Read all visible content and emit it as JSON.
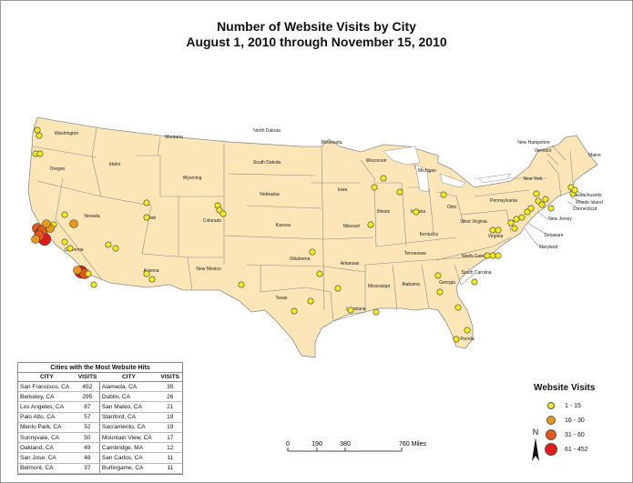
{
  "title": {
    "line1": "Number of Website Visits by City",
    "line2": "August 1, 2010 through November 15, 2010"
  },
  "states": [
    {
      "name": "Washington"
    },
    {
      "name": "Oregon"
    },
    {
      "name": "California"
    },
    {
      "name": "Nevada"
    },
    {
      "name": "Idaho"
    },
    {
      "name": "Montana"
    },
    {
      "name": "Wyoming"
    },
    {
      "name": "Utah"
    },
    {
      "name": "Arizona"
    },
    {
      "name": "Colorado"
    },
    {
      "name": "New Mexico"
    },
    {
      "name": "North Dakota"
    },
    {
      "name": "South Dakota"
    },
    {
      "name": "Nebraska"
    },
    {
      "name": "Kansas"
    },
    {
      "name": "Oklahoma"
    },
    {
      "name": "Texas"
    },
    {
      "name": "Minnesota"
    },
    {
      "name": "Iowa"
    },
    {
      "name": "Missouri"
    },
    {
      "name": "Arkansas"
    },
    {
      "name": "Louisiana"
    },
    {
      "name": "Wisconsin"
    },
    {
      "name": "Illinois"
    },
    {
      "name": "Michigan"
    },
    {
      "name": "Indiana"
    },
    {
      "name": "Ohio"
    },
    {
      "name": "Kentucky"
    },
    {
      "name": "Tennessee"
    },
    {
      "name": "Mississippi"
    },
    {
      "name": "Alabama"
    },
    {
      "name": "Georgia"
    },
    {
      "name": "Florida"
    },
    {
      "name": "South Carolina"
    },
    {
      "name": "North Carolina"
    },
    {
      "name": "Virginia"
    },
    {
      "name": "West Virginia"
    },
    {
      "name": "Pennsylvania"
    },
    {
      "name": "New York"
    },
    {
      "name": "Maine"
    },
    {
      "name": "Vermont"
    },
    {
      "name": "New Hampshire"
    },
    {
      "name": "Massachusetts"
    },
    {
      "name": "Rhode Island"
    },
    {
      "name": "Connecticut"
    },
    {
      "name": "New Jersey"
    },
    {
      "name": "Delaware"
    },
    {
      "name": "Maryland"
    }
  ],
  "top_cities": {
    "heading": "Cities with the Most Website Hits",
    "col_city": "CITY",
    "col_visits": "VISITS",
    "rows": [
      {
        "city1": "San Francisco, CA",
        "visits1": "452",
        "city2": "Alameda, CA",
        "visits2": "35"
      },
      {
        "city1": "Berkeley, CA",
        "visits1": "295",
        "city2": "Dublin, CA",
        "visits2": "26"
      },
      {
        "city1": "Los Angeles, CA",
        "visits1": "87",
        "city2": "San Mateo, CA",
        "visits2": "21"
      },
      {
        "city1": "Palo Alto, CA",
        "visits1": "57",
        "city2": "Stanford, CA",
        "visits2": "19"
      },
      {
        "city1": "Menlo Park, CA",
        "visits1": "52",
        "city2": "Sacramento, CA",
        "visits2": "19"
      },
      {
        "city1": "Sunnyvale, CA",
        "visits1": "50",
        "city2": "Mountain View, CA",
        "visits2": "17"
      },
      {
        "city1": "Oakland, CA",
        "visits1": "49",
        "city2": "Cambridge, MA",
        "visits2": "12"
      },
      {
        "city1": "San Jose, CA",
        "visits1": "48",
        "city2": "San Carlos, CA",
        "visits2": "11"
      },
      {
        "city1": "Belmont, CA",
        "visits1": "37",
        "city2": "Burlingame, CA",
        "visits2": "11"
      }
    ]
  },
  "legend": {
    "title": "Website Visits",
    "classes": [
      {
        "label": "1 - 15",
        "color": "#f3ea1b"
      },
      {
        "label": "16 - 30",
        "color": "#e89a16"
      },
      {
        "label": "31 - 60",
        "color": "#e4571a"
      },
      {
        "label": "61 - 452",
        "color": "#e41a1a"
      }
    ]
  },
  "scalebar": {
    "ticks": [
      "0",
      "190",
      "380",
      "760 Miles"
    ]
  },
  "north_label": "N",
  "colors": {
    "land": "#fce6b8",
    "border": "#8c8c8c"
  }
}
